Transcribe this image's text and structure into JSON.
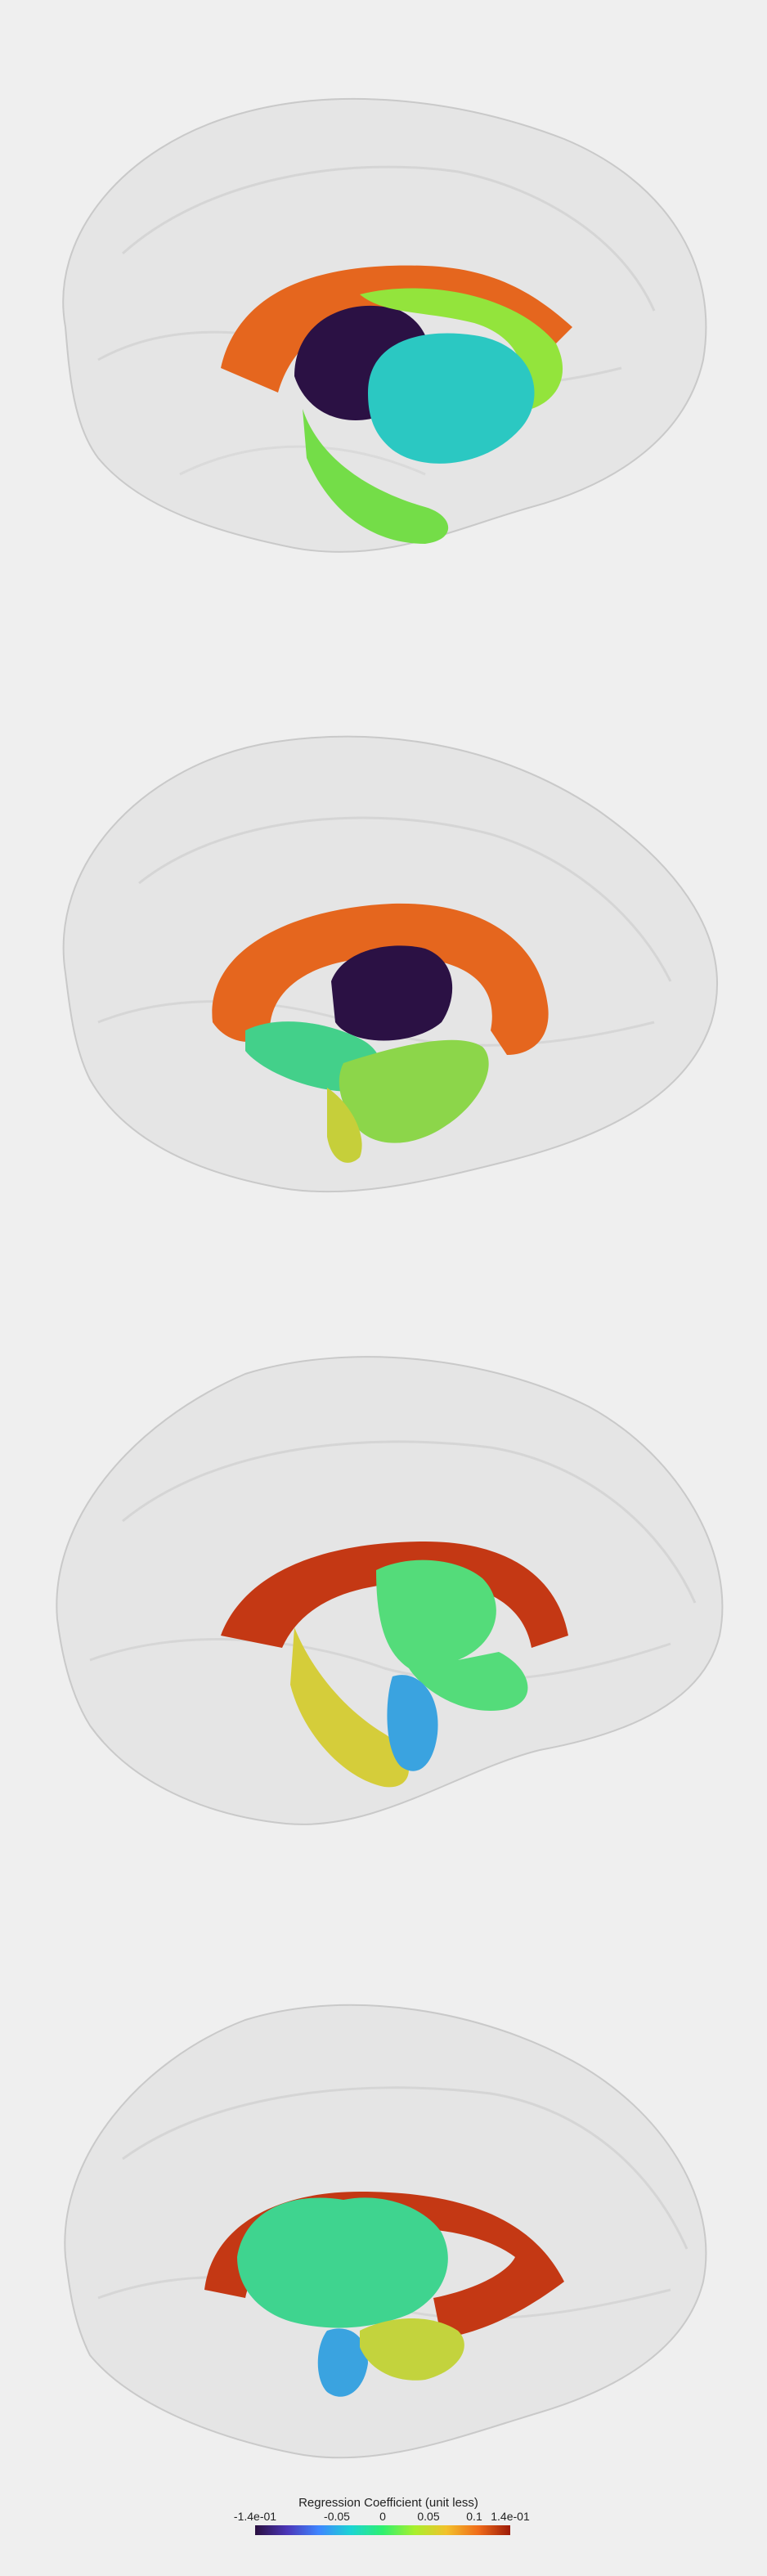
{
  "views": [
    {
      "name": "view-1",
      "structures": [
        "orange-arc",
        "dark-purple-body",
        "lime-arc",
        "cyan-body",
        "lime-lower-limb"
      ]
    },
    {
      "name": "view-2",
      "structures": [
        "orange-arc",
        "dark-purple-body",
        "green-lower-limbs"
      ]
    },
    {
      "name": "view-3",
      "structures": [
        "red-arc",
        "green-body",
        "yellow-limb",
        "blue-tip"
      ]
    },
    {
      "name": "view-4",
      "structures": [
        "red-arc",
        "green-body",
        "blue-tip",
        "yellow-limb"
      ]
    }
  ],
  "colorbar": {
    "title": "Regression Coefficient (unit less)",
    "ticks": [
      "-1.4e-01",
      "-0.05",
      "0",
      "0.05",
      "0.1",
      "1.4e-01"
    ],
    "tick_values": [
      -0.14,
      -0.05,
      0,
      0.05,
      0.1,
      0.14
    ],
    "range": [
      -0.14,
      0.14
    ],
    "colormap": [
      "#2a0f3f",
      "#4b36b8",
      "#3f86ff",
      "#1bd4d4",
      "#2ef070",
      "#a8f02c",
      "#f2c12b",
      "#f06c1a",
      "#9c1a08"
    ]
  },
  "colors": {
    "background": "#efefef",
    "brain_shell": "#dcdcdc"
  }
}
